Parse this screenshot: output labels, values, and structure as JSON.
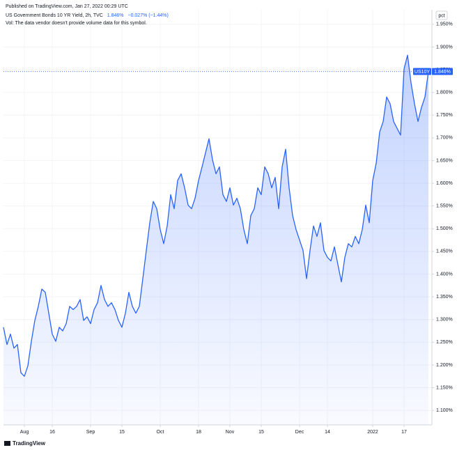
{
  "header": {
    "published": "Published on TradingView.com, Jan 27, 2022 00:29 UTC",
    "legend_name": "US Government Bonds 10 YR Yield, 2h, TVC",
    "legend_price": "1.846%",
    "legend_change": "−0.027% (−1.44%)",
    "volume_note": "Vol: The data vendor doesn't provide volume data for this symbol.",
    "logo": "TradingView"
  },
  "chart_data": {
    "type": "area",
    "color": "#2962ff",
    "unit": "pct",
    "symbol_tag": "US10Y",
    "price_label": "1.846%",
    "values": [
      1.283,
      1.245,
      1.268,
      1.237,
      1.245,
      1.183,
      1.175,
      1.198,
      1.252,
      1.298,
      1.329,
      1.367,
      1.36,
      1.314,
      1.268,
      1.252,
      1.283,
      1.275,
      1.291,
      1.329,
      1.322,
      1.329,
      1.344,
      1.298,
      1.306,
      1.291,
      1.322,
      1.337,
      1.375,
      1.344,
      1.329,
      1.337,
      1.322,
      1.298,
      1.283,
      1.314,
      1.36,
      1.329,
      1.314,
      1.329,
      1.39,
      1.452,
      1.513,
      1.56,
      1.544,
      1.498,
      1.467,
      1.506,
      1.575,
      1.544,
      1.606,
      1.621,
      1.59,
      1.552,
      1.544,
      1.567,
      1.606,
      1.636,
      1.667,
      1.698,
      1.652,
      1.621,
      1.636,
      1.575,
      1.56,
      1.59,
      1.552,
      1.567,
      1.544,
      1.498,
      1.467,
      1.529,
      1.544,
      1.59,
      1.575,
      1.636,
      1.621,
      1.59,
      1.613,
      1.544,
      1.636,
      1.675,
      1.59,
      1.529,
      1.498,
      1.475,
      1.452,
      1.39,
      1.452,
      1.506,
      1.483,
      1.513,
      1.452,
      1.437,
      1.429,
      1.46,
      1.421,
      1.383,
      1.437,
      1.467,
      1.46,
      1.483,
      1.467,
      1.498,
      1.552,
      1.513,
      1.606,
      1.644,
      1.713,
      1.736,
      1.79,
      1.775,
      1.736,
      1.721,
      1.706,
      1.852,
      1.882,
      1.821,
      1.775,
      1.736,
      1.767,
      1.79,
      1.846
    ],
    "xlim": [
      0,
      123
    ],
    "xticks": [
      {
        "value": 6,
        "label": "Aug"
      },
      {
        "value": 14,
        "label": "16"
      },
      {
        "value": 25,
        "label": "Sep"
      },
      {
        "value": 34,
        "label": "15"
      },
      {
        "value": 45,
        "label": "Oct"
      },
      {
        "value": 56,
        "label": "18"
      },
      {
        "value": 65,
        "label": "Nov"
      },
      {
        "value": 74,
        "label": "15"
      },
      {
        "value": 85,
        "label": "Dec"
      },
      {
        "value": 93,
        "label": "14"
      },
      {
        "value": 106,
        "label": "2022"
      },
      {
        "value": 115,
        "label": "17"
      }
    ],
    "ylim": [
      1.068,
      1.982
    ],
    "yticks": [
      {
        "value": 1.1,
        "label": "1.100%"
      },
      {
        "value": 1.15,
        "label": "1.150%"
      },
      {
        "value": 1.2,
        "label": "1.200%"
      },
      {
        "value": 1.25,
        "label": "1.250%"
      },
      {
        "value": 1.3,
        "label": "1.300%"
      },
      {
        "value": 1.35,
        "label": "1.350%"
      },
      {
        "value": 1.4,
        "label": "1.400%"
      },
      {
        "value": 1.45,
        "label": "1.450%"
      },
      {
        "value": 1.5,
        "label": "1.500%"
      },
      {
        "value": 1.55,
        "label": "1.550%"
      },
      {
        "value": 1.6,
        "label": "1.600%"
      },
      {
        "value": 1.65,
        "label": "1.650%"
      },
      {
        "value": 1.7,
        "label": "1.700%"
      },
      {
        "value": 1.75,
        "label": "1.750%"
      },
      {
        "value": 1.8,
        "label": "1.800%"
      },
      {
        "value": 1.85,
        "label": "1.850%"
      },
      {
        "value": 1.9,
        "label": "1.900%"
      },
      {
        "value": 1.95,
        "label": "1.950%"
      }
    ],
    "grid": true
  }
}
